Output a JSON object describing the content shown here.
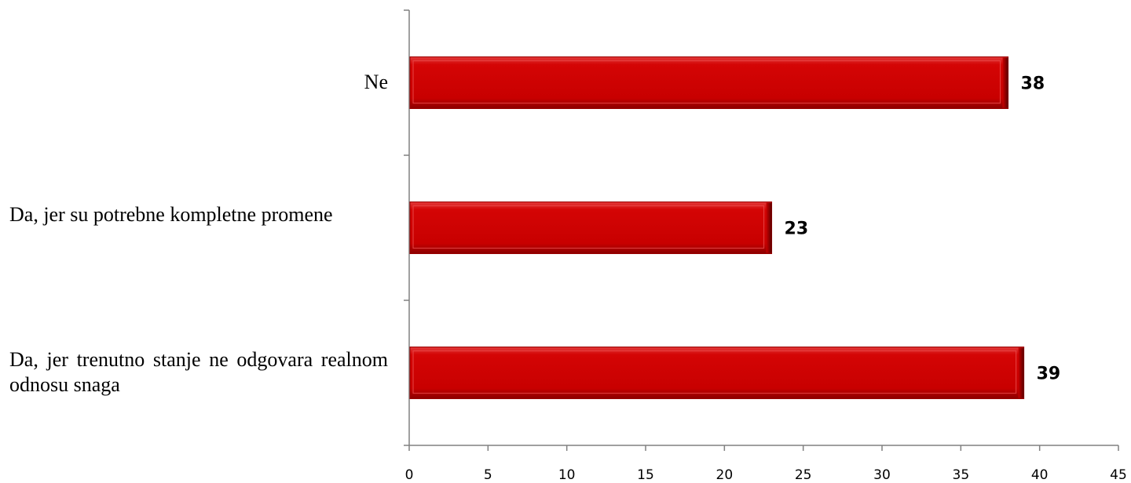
{
  "chart_data": {
    "type": "bar",
    "orientation": "horizontal",
    "categories": [
      "Ne",
      "Da,    jer su potrebne kompletne promene",
      "Da, jer trenutno stanje ne odgovara realnom odnosu snaga"
    ],
    "values": [
      38,
      23,
      39
    ],
    "data_labels": [
      "38",
      "23",
      "39"
    ],
    "xlim": [
      0,
      45
    ],
    "x_ticks": [
      0,
      5,
      10,
      15,
      20,
      25,
      30,
      35,
      40,
      45
    ],
    "x_tick_labels": [
      "0",
      "5",
      "10",
      "15",
      "20",
      "25",
      "30",
      "35",
      "40",
      "45"
    ],
    "title": "",
    "xlabel": "",
    "ylabel": "",
    "grid": false,
    "legend": "none",
    "colors": {
      "bar_fill": "#cc0000",
      "bar_highlight": "#ee3a3a",
      "bar_shadow": "#7a0000",
      "axis": "#808080"
    }
  }
}
